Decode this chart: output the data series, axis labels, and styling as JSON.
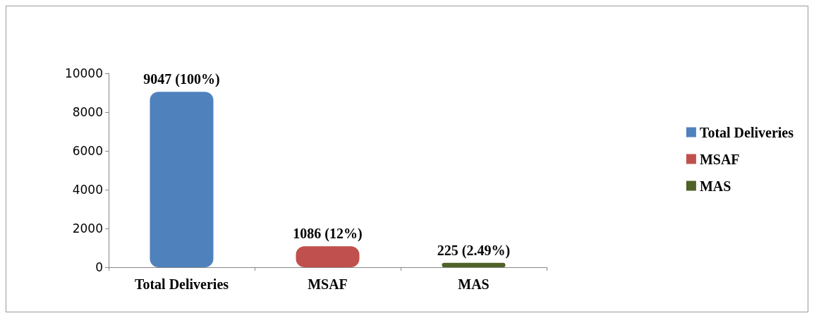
{
  "chart_data": {
    "type": "bar",
    "categories": [
      "Total Deliveries",
      "MSAF",
      "MAS"
    ],
    "series": [
      {
        "name": "Total Deliveries",
        "color": "#4f81bd",
        "values": [
          9047,
          null,
          null
        ],
        "value_labels": [
          "9047 (100%)",
          null,
          null
        ]
      },
      {
        "name": "MSAF",
        "color": "#c0504d",
        "values": [
          null,
          1086,
          null
        ],
        "value_labels": [
          null,
          "1086 (12%)",
          null
        ]
      },
      {
        "name": "MAS",
        "color": "#4f6228",
        "values": [
          null,
          null,
          225
        ],
        "value_labels": [
          null,
          null,
          "225 (2.49%)"
        ]
      }
    ],
    "ylim": [
      0,
      10000
    ],
    "yticks": [
      0,
      2000,
      4000,
      6000,
      8000,
      10000
    ],
    "grid": false,
    "legend": "right"
  }
}
